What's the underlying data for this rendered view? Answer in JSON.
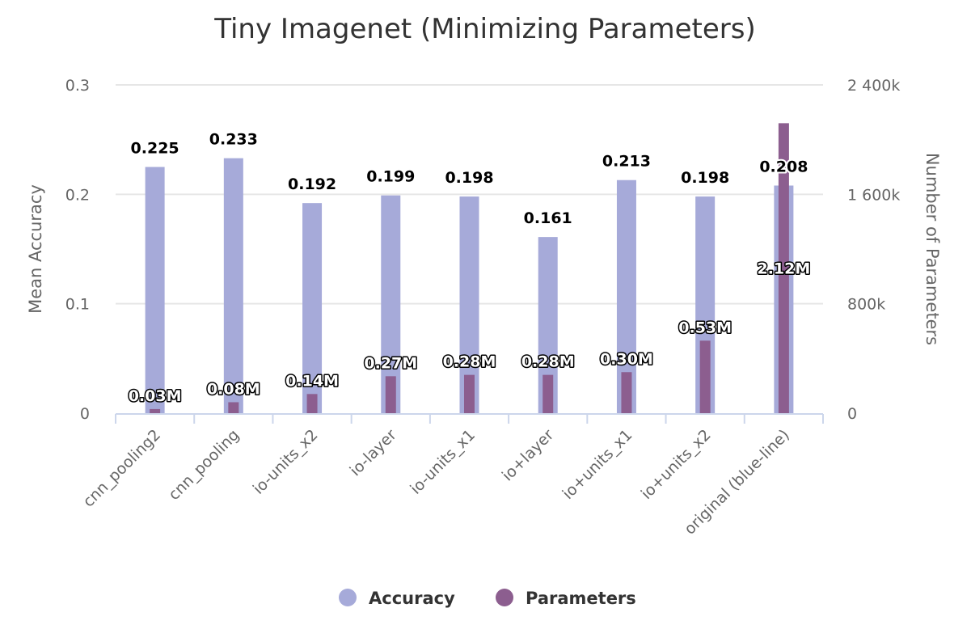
{
  "chart_data": {
    "type": "bar",
    "title": "Tiny Imagenet (Minimizing Parameters)",
    "categories": [
      "cnn_pooling2",
      "cnn_pooling",
      "io-units_x2",
      "io-layer",
      "io-units_x1",
      "io+layer",
      "io+units_x1",
      "io+units_x2",
      "original (blue-line)"
    ],
    "series": [
      {
        "name": "Accuracy",
        "axis": "left",
        "color": "#a6aad9",
        "values": [
          0.225,
          0.233,
          0.192,
          0.199,
          0.198,
          0.161,
          0.213,
          0.198,
          0.208
        ],
        "labels": [
          "0.225",
          "0.233",
          "0.192",
          "0.199",
          "0.198",
          "0.161",
          "0.213",
          "0.198",
          "0.208"
        ]
      },
      {
        "name": "Parameters",
        "axis": "right",
        "color": "#8c5e8f",
        "values": [
          30000,
          80000,
          140000,
          270000,
          280000,
          280000,
          300000,
          530000,
          2120000
        ],
        "labels": [
          "0.03M",
          "0.08M",
          "0.14M",
          "0.27M",
          "0.28M",
          "0.28M",
          "0.30M",
          "0.53M",
          "2.12M"
        ]
      }
    ],
    "y_left": {
      "label": "Mean Accuracy",
      "lim": [
        0,
        0.3
      ],
      "ticks": [
        0,
        0.1,
        0.2,
        0.3
      ],
      "tick_labels": [
        "0",
        "0.1",
        "0.2",
        "0.3"
      ]
    },
    "y_right": {
      "label": "Number of Parameters",
      "lim": [
        0,
        2400000
      ],
      "ticks": [
        0,
        800000,
        1600000,
        2400000
      ],
      "tick_labels": [
        "0",
        "800k",
        "1 600k",
        "2 400k"
      ]
    },
    "grid": true,
    "legend": "bottom-center"
  }
}
